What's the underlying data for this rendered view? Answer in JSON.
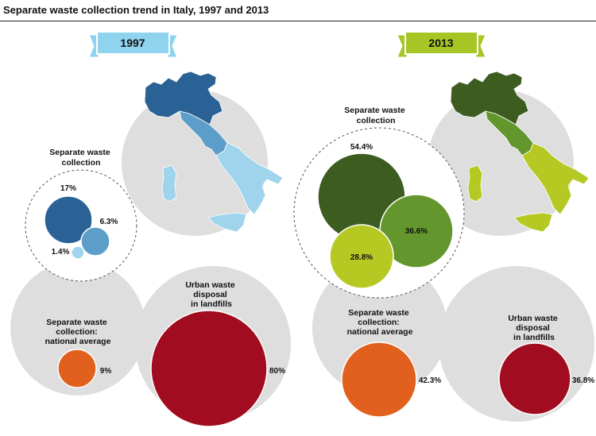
{
  "title": "Separate waste collection trend in Italy, 1997 and 2013",
  "colors": {
    "circle_bg": "#dedede",
    "y1997": [
      "#2a6295",
      "#5c9ec9",
      "#9fd4ec"
    ],
    "y2013": [
      "#3d5d20",
      "#64962e",
      "#b5c922"
    ],
    "banner1997": "#8fd3ee",
    "banner2013": "#a7c625",
    "national_average": "#e2601d",
    "landfill": "#a20c20"
  },
  "chart_data": [
    {
      "type": "bubble",
      "year": "1997",
      "title": "Separate waste collection",
      "series": [
        {
          "region": "north",
          "value": 17,
          "label": "17%"
        },
        {
          "region": "centre",
          "value": 6.3,
          "label": "6.3%"
        },
        {
          "region": "south",
          "value": 1.4,
          "label": "1.4%"
        }
      ],
      "national_average": {
        "title": "Separate waste collection: national average",
        "title_lines": [
          "Separate waste",
          "collection:",
          "national average"
        ],
        "value": 9,
        "label": "9%"
      },
      "landfill": {
        "title": "Urban waste disposal in landfills",
        "title_lines": [
          "Urban waste",
          "disposal",
          "in landfills"
        ],
        "value": 80,
        "label": "80%"
      },
      "title_lines": [
        "Separate waste",
        "collection"
      ]
    },
    {
      "type": "bubble",
      "year": "2013",
      "title": "Separate waste collection",
      "series": [
        {
          "region": "north",
          "value": 54.4,
          "label": "54.4%"
        },
        {
          "region": "centre",
          "value": 36.6,
          "label": "36.6%"
        },
        {
          "region": "south",
          "value": 28.8,
          "label": "28.8%"
        }
      ],
      "national_average": {
        "title": "Separate waste collection: national average",
        "title_lines": [
          "Separate waste",
          "collection:",
          "national average"
        ],
        "value": 42.3,
        "label": "42.3%"
      },
      "landfill": {
        "title": "Urban waste disposal in landfills",
        "title_lines": [
          "Urban waste",
          "disposal",
          "in landfills"
        ],
        "value": 36.8,
        "label": "36.8%"
      },
      "title_lines": [
        "Separate waste",
        "collection"
      ]
    }
  ]
}
